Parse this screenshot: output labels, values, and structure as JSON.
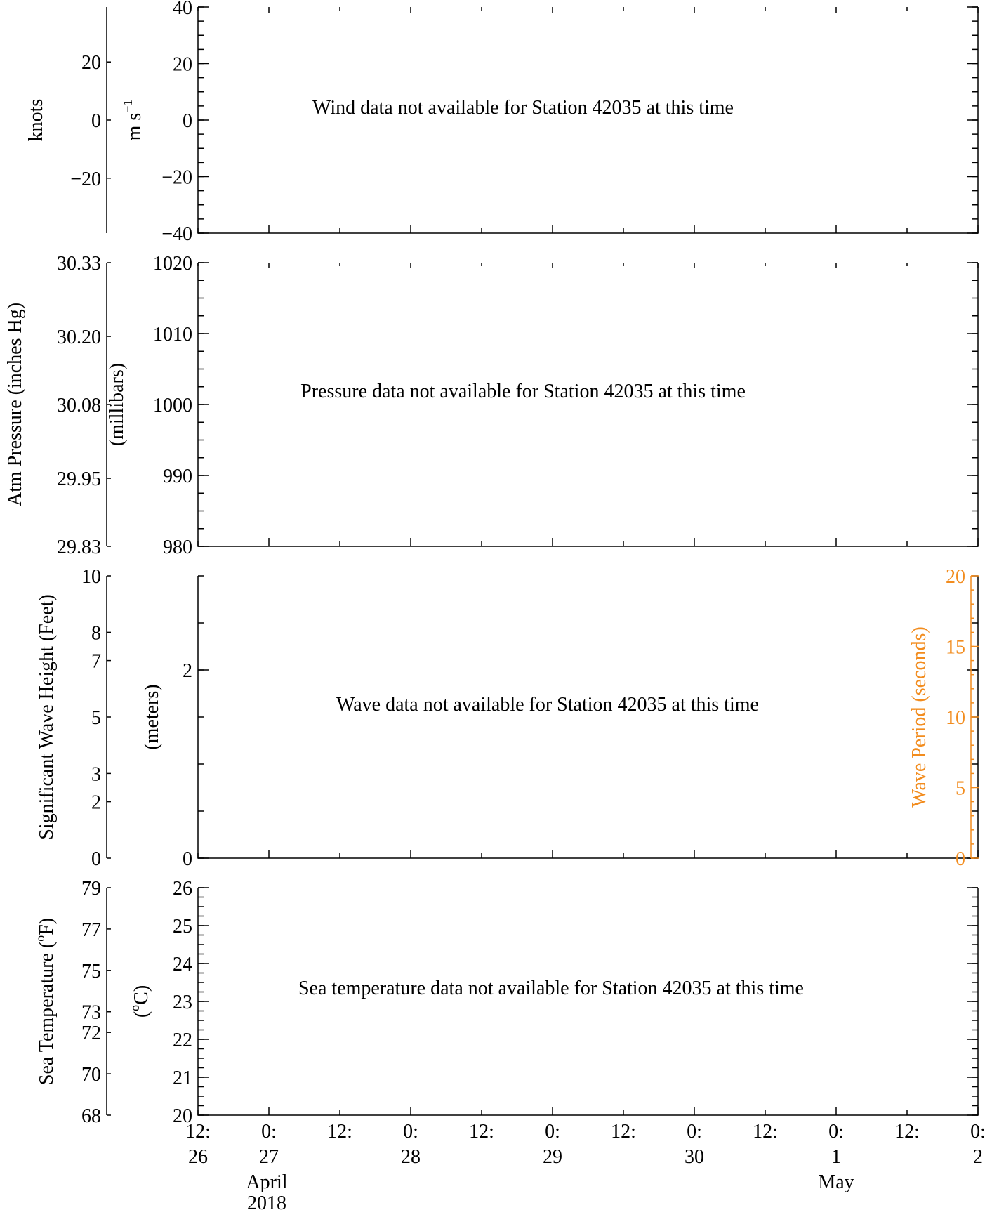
{
  "chart_data": [
    {
      "type": "line",
      "panel": "wind",
      "message": "Wind data not available for Station 42035 at this time",
      "y_left_outer": {
        "label": "knots",
        "ticks": [
          "20",
          "0",
          "−20"
        ],
        "values": [
          20,
          0,
          -20
        ],
        "ylim": [
          -38.9,
          38.9
        ]
      },
      "y_left_inner": {
        "label": "m s",
        "label_sup": "−1",
        "ticks": [
          "40",
          "20",
          "0",
          "−20",
          "−40"
        ],
        "values": [
          40,
          20,
          0,
          -20,
          -40
        ],
        "ylim": [
          -40,
          40
        ]
      },
      "series": []
    },
    {
      "type": "line",
      "panel": "pressure",
      "message": "Pressure data not available for Station 42035 at this time",
      "y_left_outer": {
        "label": "Atm Pressure (inches Hg)",
        "ticks": [
          "30.33",
          "30.20",
          "30.08",
          "29.95",
          "29.83"
        ],
        "values": [
          30.33,
          30.2,
          30.08,
          29.95,
          29.83
        ],
        "ylim": [
          29.83,
          30.33
        ]
      },
      "y_left_inner": {
        "label": "(millibars)",
        "ticks": [
          "1020",
          "1010",
          "1000",
          "990",
          "980"
        ],
        "values": [
          1020,
          1010,
          1000,
          990,
          980
        ],
        "ylim": [
          980,
          1020
        ]
      },
      "series": []
    },
    {
      "type": "line",
      "panel": "waves",
      "message": "Wave data not available for Station 42035 at this time",
      "y_left_outer": {
        "label": "Significant Wave Height (Feet)",
        "ticks": [
          "10",
          "8",
          "7",
          "5",
          "3",
          "2",
          "0"
        ],
        "values": [
          10,
          8,
          7,
          5,
          3,
          2,
          0
        ],
        "ylim": [
          0,
          10
        ]
      },
      "y_left_inner": {
        "label": "(meters)",
        "ticks": [
          "2",
          "0"
        ],
        "values": [
          2,
          0
        ],
        "ylim": [
          0,
          3
        ]
      },
      "y_right": {
        "label": "Wave Period (seconds)",
        "ticks": [
          "20",
          "15",
          "10",
          "5",
          "0"
        ],
        "values": [
          20,
          15,
          10,
          5,
          0
        ],
        "ylim": [
          0,
          20
        ],
        "color": "#f28c1e"
      },
      "series": []
    },
    {
      "type": "line",
      "panel": "sea_temperature",
      "message": "Sea temperature data not available for Station 42035 at this time",
      "y_left_outer": {
        "label": "Sea Temperature (",
        "label_sup": "o",
        "label_end": "F)",
        "ticks": [
          "79",
          "77",
          "75",
          "73",
          "72",
          "70",
          "68"
        ],
        "values": [
          79,
          77,
          75,
          73,
          72,
          70,
          68
        ],
        "ylim": [
          68,
          79
        ]
      },
      "y_left_inner": {
        "label": "(",
        "label_sup": "o",
        "label_end": "C)",
        "ticks": [
          "26",
          "25",
          "24",
          "23",
          "22",
          "21",
          "20"
        ],
        "values": [
          26,
          25,
          24,
          23,
          22,
          21,
          20
        ],
        "ylim": [
          20,
          26
        ]
      },
      "series": []
    }
  ],
  "x_axis": {
    "xlim": [
      "2018-04-26 12:00",
      "2018-05-02 00:00"
    ],
    "ticks": [
      {
        "x": "2018-04-26 12:00",
        "hour": "12:",
        "day": "26",
        "month": "",
        "year": ""
      },
      {
        "x": "2018-04-27 00:00",
        "hour": "0:",
        "day": "27",
        "month": "April",
        "year": "2018"
      },
      {
        "x": "2018-04-27 12:00",
        "hour": "12:",
        "day": "",
        "month": "",
        "year": ""
      },
      {
        "x": "2018-04-28 00:00",
        "hour": "0:",
        "day": "28",
        "month": "",
        "year": ""
      },
      {
        "x": "2018-04-28 12:00",
        "hour": "12:",
        "day": "",
        "month": "",
        "year": ""
      },
      {
        "x": "2018-04-29 00:00",
        "hour": "0:",
        "day": "29",
        "month": "",
        "year": ""
      },
      {
        "x": "2018-04-29 12:00",
        "hour": "12:",
        "day": "",
        "month": "",
        "year": ""
      },
      {
        "x": "2018-04-30 00:00",
        "hour": "0:",
        "day": "30",
        "month": "",
        "year": ""
      },
      {
        "x": "2018-04-30 12:00",
        "hour": "12:",
        "day": "",
        "month": "",
        "year": ""
      },
      {
        "x": "2018-05-01 00:00",
        "hour": "0:",
        "day": "1",
        "month": "May",
        "year": ""
      },
      {
        "x": "2018-05-01 12:00",
        "hour": "12:",
        "day": "",
        "month": "",
        "year": ""
      },
      {
        "x": "2018-05-02 00:00",
        "hour": "0:",
        "day": "2",
        "month": "",
        "year": ""
      }
    ]
  }
}
